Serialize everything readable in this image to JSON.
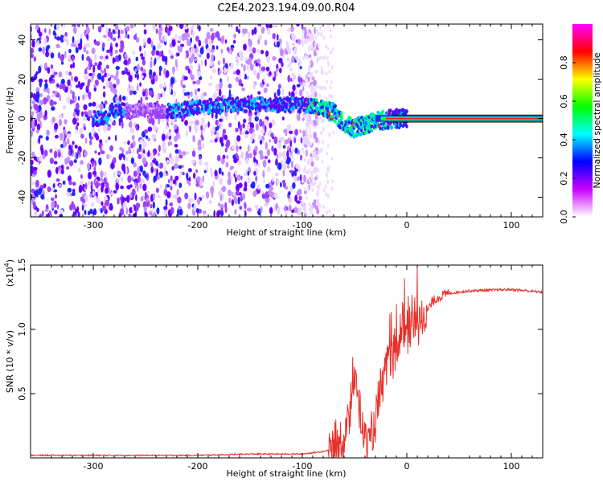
{
  "title": "C2E4.2023.194.09.00.R04",
  "chart_data": [
    {
      "type": "heatmap",
      "xlabel": "Height of straight line (km)",
      "ylabel": "Frequency (Hz)",
      "xlim": [
        -360,
        130
      ],
      "ylim": [
        -50,
        48
      ],
      "xticks": [
        -300,
        -200,
        -100,
        0,
        100
      ],
      "yticks": [
        -40,
        -20,
        0,
        20,
        40
      ],
      "colorbar": {
        "label": "Normalized spectral amplitude",
        "range": [
          0.0,
          1.0
        ],
        "ticks": [
          "0.0",
          "0.2",
          "0.4",
          "0.6",
          "0.8"
        ],
        "colormap": [
          "#ffffff",
          "#cc00ff",
          "#0000ff",
          "#00ffff",
          "#00ff00",
          "#ffff00",
          "#ff0000",
          "#ff00ff"
        ]
      },
      "noise_floor_extent": [
        -360,
        -95
      ],
      "ridge": [
        {
          "x": -285,
          "freq": 4
        },
        {
          "x": -220,
          "freq": 4
        },
        {
          "x": -200,
          "freq": 6
        },
        {
          "x": -160,
          "freq": 7
        },
        {
          "x": -130,
          "freq": 7
        },
        {
          "x": -100,
          "freq": 7
        },
        {
          "x": -85,
          "freq": 6
        },
        {
          "x": -70,
          "freq": 3
        },
        {
          "x": -60,
          "freq": -3
        },
        {
          "x": -50,
          "freq": -5
        },
        {
          "x": -40,
          "freq": -3
        },
        {
          "x": -25,
          "freq": -1
        },
        {
          "x": -10,
          "freq": 0
        },
        {
          "x": 0,
          "freq": 0
        },
        {
          "x": 130,
          "freq": 0
        }
      ],
      "steady_tone": {
        "freq": 0,
        "x_start": -40,
        "x_end": 130
      }
    },
    {
      "type": "line",
      "xlabel": "Height of straight line (km)",
      "ylabel": "SNR (10 * v/v)",
      "y_multiplier": "(x10",
      "y_multiplier_exp": "4",
      "y_multiplier_close": ")",
      "xlim": [
        -360,
        130
      ],
      "ylim": [
        0.0,
        1.5
      ],
      "xticks": [
        -300,
        -200,
        -100,
        0,
        100
      ],
      "yticks": [
        "0.5",
        "1.0",
        "1.5"
      ],
      "color": "#e8302a",
      "series": [
        {
          "values": [
            {
              "x": -360,
              "y": 0.02
            },
            {
              "x": -200,
              "y": 0.02
            },
            {
              "x": -150,
              "y": 0.03
            },
            {
              "x": -100,
              "y": 0.03
            },
            {
              "x": -80,
              "y": 0.05
            },
            {
              "x": -70,
              "y": 0.07
            },
            {
              "x": -60,
              "y": 0.15
            },
            {
              "x": -55,
              "y": 0.3
            },
            {
              "x": -50,
              "y": 0.6
            },
            {
              "x": -45,
              "y": 0.35
            },
            {
              "x": -40,
              "y": 0.15
            },
            {
              "x": -35,
              "y": 0.1
            },
            {
              "x": -30,
              "y": 0.3
            },
            {
              "x": -25,
              "y": 0.5
            },
            {
              "x": -20,
              "y": 0.65
            },
            {
              "x": -10,
              "y": 0.85
            },
            {
              "x": 0,
              "y": 1.0
            },
            {
              "x": 10,
              "y": 1.05
            },
            {
              "x": 15,
              "y": 1.1
            },
            {
              "x": 20,
              "y": 1.15
            },
            {
              "x": 25,
              "y": 1.22
            },
            {
              "x": 30,
              "y": 1.25
            },
            {
              "x": 40,
              "y": 1.28
            },
            {
              "x": 60,
              "y": 1.3
            },
            {
              "x": 100,
              "y": 1.31
            },
            {
              "x": 130,
              "y": 1.29
            }
          ]
        }
      ]
    }
  ]
}
